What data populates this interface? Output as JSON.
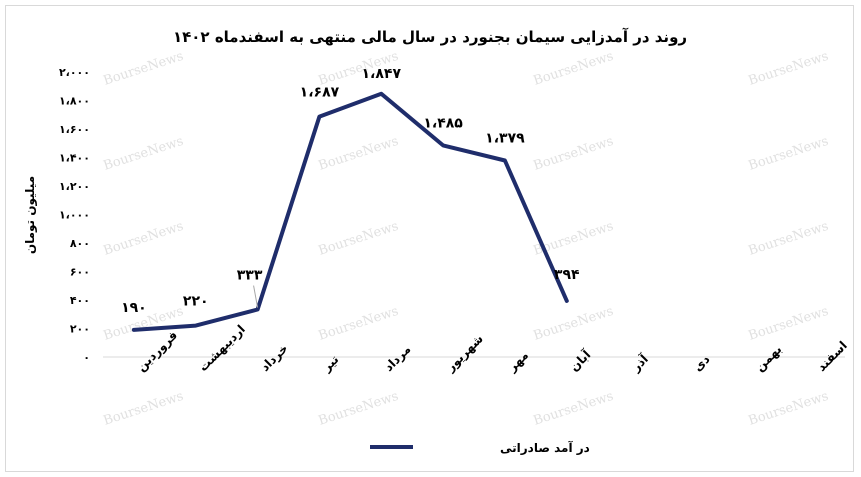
{
  "chart_data": {
    "type": "line",
    "title": "روند در آمدزایی سیمان بجنورد در سال مالی منتهی به اسفندماه ۱۴۰۲",
    "ylabel": "میلیون تومان",
    "xlabel": "",
    "ylim": [
      0,
      2000
    ],
    "yticks": [
      0,
      200,
      400,
      600,
      800,
      1000,
      1200,
      1400,
      1600,
      1800,
      2000
    ],
    "ytick_labels": [
      "۰",
      "۲۰۰",
      "۴۰۰",
      "۶۰۰",
      "۸۰۰",
      "۱،۰۰۰",
      "۱،۲۰۰",
      "۱،۴۰۰",
      "۱،۶۰۰",
      "۱،۸۰۰",
      "۲،۰۰۰"
    ],
    "categories": [
      "فروردین",
      "اردیبهشت",
      "خرداد",
      "تیر",
      "مرداد",
      "شهریور",
      "مهر",
      "آبان",
      "آذر",
      "دی",
      "بهمن",
      "اسفند"
    ],
    "series": [
      {
        "name": "در آمد صادراتی",
        "color": "#1f2d6b",
        "values": [
          190,
          220,
          333,
          1687,
          1847,
          1485,
          1379,
          394,
          null,
          null,
          null,
          null
        ],
        "data_labels": [
          "۱۹۰",
          "۲۲۰",
          "۳۳۳",
          "۱،۶۸۷",
          "۱،۸۴۷",
          "۱،۴۸۵",
          "۱،۳۷۹",
          "۳۹۴",
          "",
          "",
          "",
          ""
        ]
      }
    ],
    "grid": false,
    "legend": "bottom"
  },
  "watermark": "BourseNews"
}
